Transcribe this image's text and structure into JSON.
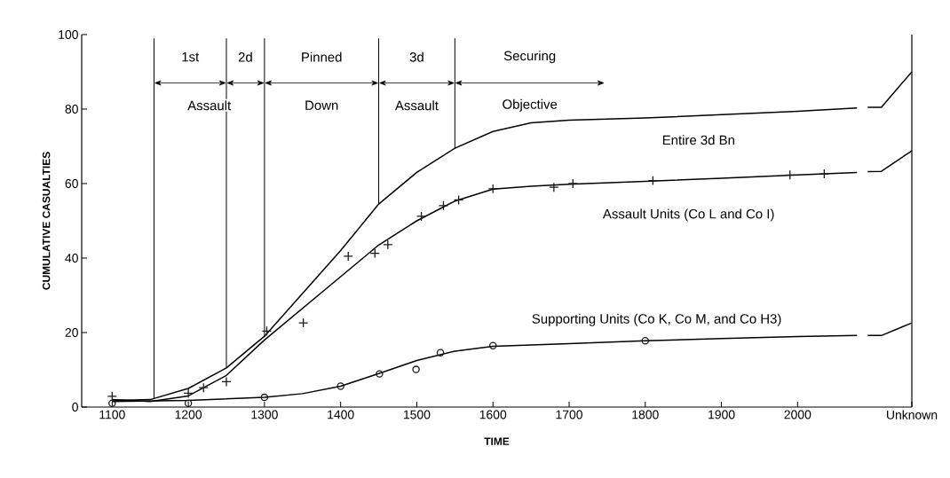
{
  "chart_data": {
    "type": "line",
    "xlabel": "TIME",
    "ylabel": "CUMULATIVE CASUALTIES",
    "line_style": "solid",
    "xlim": [
      1060,
      2150
    ],
    "ylim": [
      0,
      100
    ],
    "xticks": [
      1100,
      1200,
      1300,
      1400,
      1500,
      1600,
      1700,
      1800,
      1900,
      2000,
      {
        "value": 2150,
        "label": "Unknown"
      }
    ],
    "yticks": [
      0,
      20,
      40,
      60,
      80,
      100
    ],
    "series": [
      {
        "name": "Entire 3d Bn",
        "color": "#000000",
        "marker": "none",
        "x": [
          1100,
          1150,
          1200,
          1250,
          1300,
          1350,
          1400,
          1450,
          1500,
          1550,
          1600,
          1650,
          1700,
          1800,
          1900,
          2000,
          2078,
          2084,
          2092,
          2110,
          2150
        ],
        "values": [
          1.7,
          2,
          5,
          10.5,
          19,
          30.5,
          42,
          54.5,
          63,
          69.5,
          74,
          76.3,
          77,
          77.6,
          78.5,
          79.4,
          80.3,
          null,
          80.5,
          80.5,
          90
        ]
      },
      {
        "name": "Assault Units (Co L and Co I)",
        "color": "#000000",
        "marker": "none",
        "x": [
          1100,
          1150,
          1200,
          1250,
          1300,
          1350,
          1400,
          1450,
          1500,
          1550,
          1600,
          1650,
          1700,
          1800,
          1900,
          2000,
          2078,
          2084,
          2092,
          2110,
          2150
        ],
        "values": [
          2,
          1.5,
          3,
          8.5,
          18,
          26.5,
          35,
          43.5,
          50,
          55.3,
          58.5,
          59.3,
          59.8,
          60.6,
          61.4,
          62.3,
          63,
          null,
          63.2,
          63.3,
          68.8
        ]
      },
      {
        "type": "scatter",
        "color": "#1a1a1a",
        "marker": "cross",
        "x": [
          1100,
          1200,
          1220,
          1250,
          1303,
          1351,
          1410,
          1445,
          1462,
          1506,
          1535,
          1555,
          1600,
          1680,
          1705,
          1810,
          1990,
          2035
        ],
        "values": [
          2.9,
          3.7,
          5.2,
          6.8,
          20.4,
          22.6,
          40.5,
          41.3,
          43.6,
          51.2,
          54.1,
          55.6,
          58.6,
          59,
          60,
          60.8,
          62.3,
          62.6
        ]
      },
      {
        "name": "Supporting Units (Co K, Co M, and Co H3)",
        "color": "#000000",
        "marker": "none",
        "x": [
          1100,
          1200,
          1300,
          1350,
          1400,
          1450,
          1500,
          1550,
          1600,
          1700,
          1800,
          1900,
          2000,
          2078,
          2084,
          2092,
          2110,
          2150
        ],
        "values": [
          1.5,
          1.8,
          2.6,
          3.6,
          5.6,
          9,
          12.5,
          15,
          16.3,
          17,
          17.8,
          18.4,
          18.9,
          19.2,
          null,
          19.2,
          19.2,
          22.6
        ]
      },
      {
        "type": "scatter",
        "color": "#1a1a1a",
        "marker": "circle",
        "x": [
          1100,
          1200,
          1300,
          1400,
          1451,
          1499,
          1531,
          1600,
          1800
        ],
        "values": [
          1,
          1,
          2.6,
          5.6,
          8.9,
          10.1,
          14.6,
          16.5,
          17.8
        ]
      }
    ],
    "ref_lines": [
      {
        "axis": "x",
        "value": 1155
      },
      {
        "axis": "x",
        "value": 1250
      },
      {
        "axis": "x",
        "value": 1300
      },
      {
        "axis": "x",
        "value": 1450
      },
      {
        "axis": "x",
        "value": 1550
      }
    ],
    "annotations": [
      "1st",
      "2d",
      "Assault",
      "Pinned",
      "Down",
      "3d",
      "Assault",
      "Securing",
      "Objective"
    ]
  }
}
